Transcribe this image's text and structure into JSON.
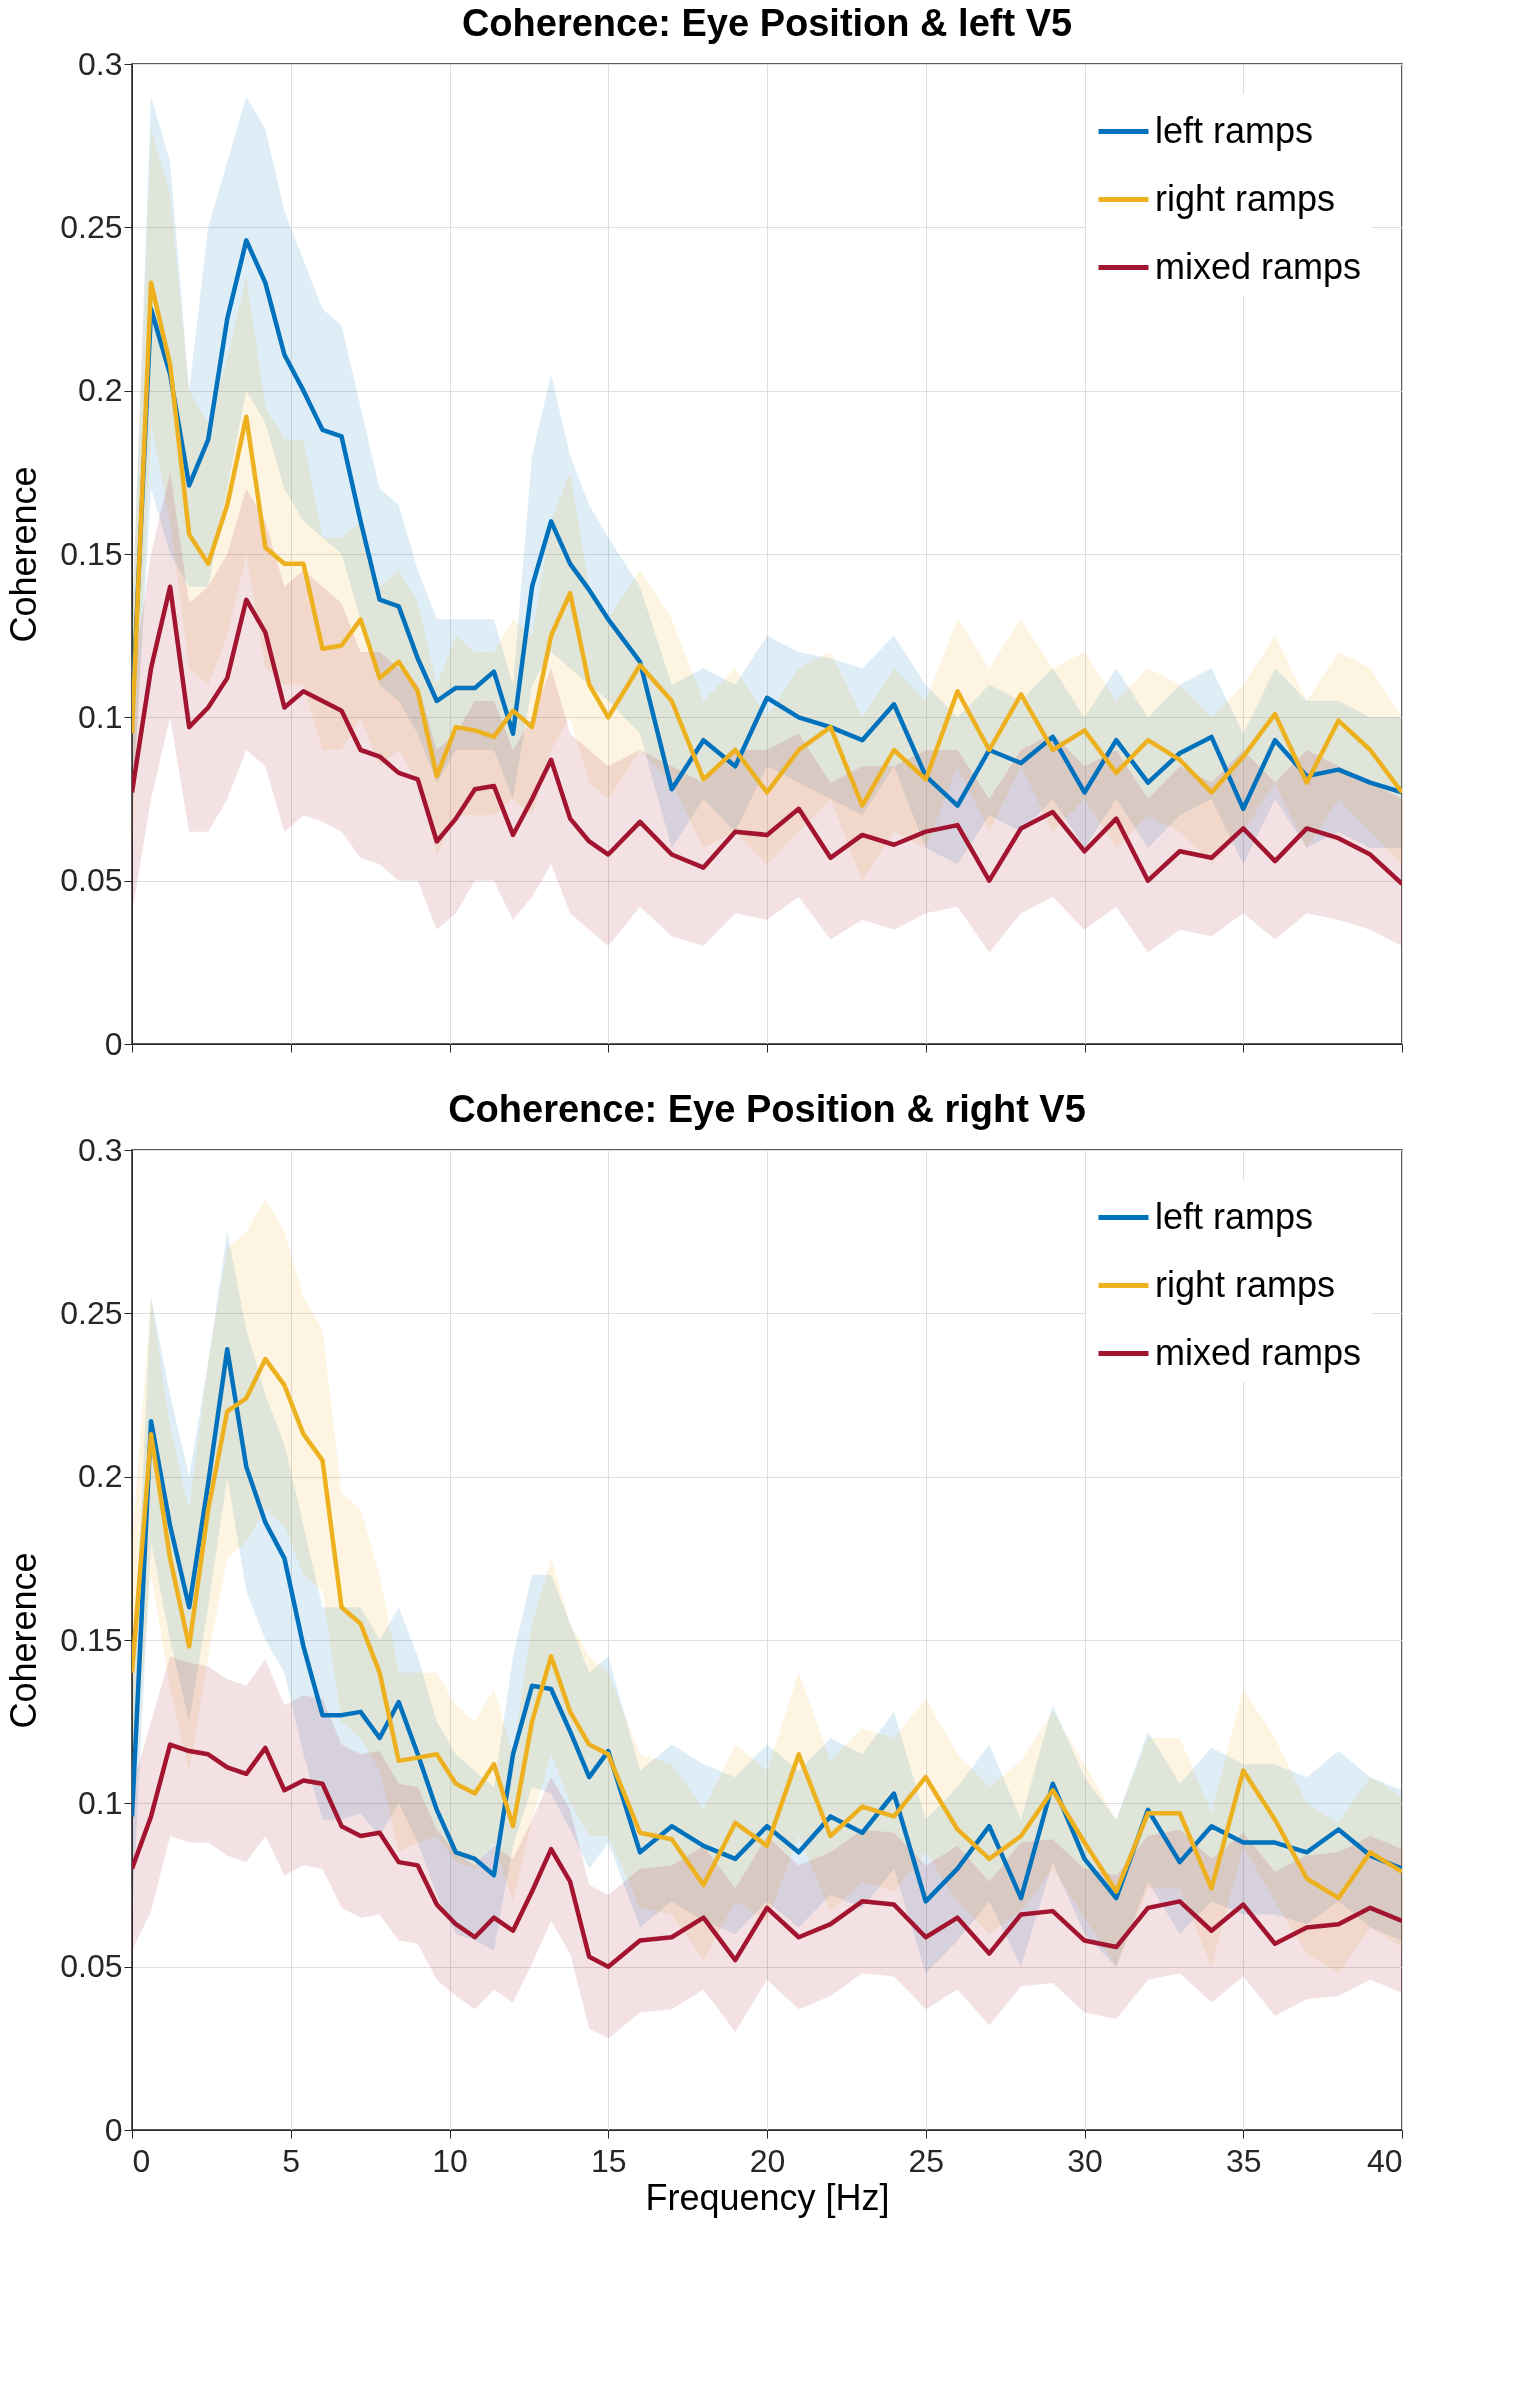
{
  "chart_data": [
    {
      "type": "line",
      "title": "Coherence: Eye Position & left V5",
      "ylabel": "Coherence",
      "xlim": [
        0,
        40
      ],
      "xticks": [
        0,
        5,
        10,
        15,
        20,
        25,
        30,
        35,
        40
      ],
      "ylim": [
        0,
        0.3
      ],
      "yticks": [
        0,
        0.05,
        0.1,
        0.15,
        0.2,
        0.25,
        0.3
      ],
      "grid": true,
      "legend": "top right",
      "tick_labels": "y",
      "x": [
        0,
        0.6,
        1.2,
        1.8,
        2.4,
        3.0,
        3.6,
        4.2,
        4.8,
        5.4,
        6.0,
        6.6,
        7.2,
        7.8,
        8.4,
        9.0,
        9.6,
        10.2,
        10.8,
        11.4,
        12.0,
        12.6,
        13.2,
        13.8,
        14.4,
        15,
        16,
        17,
        18,
        19,
        20,
        21,
        22,
        23,
        24,
        25,
        26,
        27,
        28,
        29,
        30,
        31,
        32,
        33,
        34,
        35,
        36,
        37,
        38,
        39,
        40
      ],
      "series": [
        {
          "name": "left ramps",
          "color": "#0072bd",
          "values": [
            0.1,
            0.225,
            0.205,
            0.171,
            0.185,
            0.222,
            0.246,
            0.233,
            0.211,
            0.2,
            0.188,
            0.186,
            0.16,
            0.136,
            0.134,
            0.118,
            0.105,
            0.109,
            0.109,
            0.114,
            0.095,
            0.14,
            0.16,
            0.147,
            0.139,
            0.13,
            0.117,
            0.078,
            0.093,
            0.085,
            0.106,
            0.1,
            0.097,
            0.093,
            0.104,
            0.082,
            0.073,
            0.09,
            0.086,
            0.094,
            0.077,
            0.093,
            0.08,
            0.089,
            0.094,
            0.072,
            0.093,
            0.082,
            0.084,
            0.08,
            0.077
          ],
          "upper": [
            0.13,
            0.29,
            0.27,
            0.2,
            0.25,
            0.27,
            0.29,
            0.28,
            0.255,
            0.24,
            0.225,
            0.22,
            0.195,
            0.17,
            0.165,
            0.145,
            0.13,
            0.13,
            0.13,
            0.13,
            0.11,
            0.18,
            0.205,
            0.18,
            0.165,
            0.155,
            0.14,
            0.11,
            0.115,
            0.11,
            0.125,
            0.12,
            0.118,
            0.115,
            0.125,
            0.11,
            0.1,
            0.11,
            0.105,
            0.115,
            0.1,
            0.115,
            0.1,
            0.11,
            0.115,
            0.095,
            0.115,
            0.105,
            0.105,
            0.1,
            0.1
          ],
          "lower": [
            0.07,
            0.17,
            0.15,
            0.14,
            0.14,
            0.17,
            0.2,
            0.19,
            0.17,
            0.16,
            0.155,
            0.15,
            0.13,
            0.11,
            0.105,
            0.095,
            0.08,
            0.09,
            0.09,
            0.09,
            0.075,
            0.11,
            0.12,
            0.115,
            0.11,
            0.105,
            0.095,
            0.06,
            0.075,
            0.065,
            0.085,
            0.08,
            0.075,
            0.07,
            0.085,
            0.06,
            0.055,
            0.07,
            0.065,
            0.075,
            0.06,
            0.075,
            0.06,
            0.07,
            0.075,
            0.055,
            0.075,
            0.06,
            0.065,
            0.06,
            0.06
          ]
        },
        {
          "name": "right ramps",
          "color": "#edb120",
          "values": [
            0.095,
            0.233,
            0.208,
            0.156,
            0.147,
            0.165,
            0.192,
            0.152,
            0.147,
            0.147,
            0.121,
            0.122,
            0.13,
            0.112,
            0.117,
            0.108,
            0.082,
            0.097,
            0.096,
            0.094,
            0.102,
            0.097,
            0.125,
            0.138,
            0.11,
            0.1,
            0.116,
            0.105,
            0.081,
            0.09,
            0.077,
            0.09,
            0.097,
            0.073,
            0.09,
            0.081,
            0.108,
            0.09,
            0.107,
            0.09,
            0.096,
            0.083,
            0.093,
            0.087,
            0.077,
            0.088,
            0.101,
            0.08,
            0.099,
            0.09,
            0.077
          ],
          "upper": [
            0.13,
            0.28,
            0.26,
            0.2,
            0.19,
            0.21,
            0.235,
            0.195,
            0.185,
            0.185,
            0.155,
            0.155,
            0.16,
            0.14,
            0.145,
            0.135,
            0.11,
            0.125,
            0.12,
            0.12,
            0.13,
            0.125,
            0.16,
            0.175,
            0.14,
            0.13,
            0.145,
            0.13,
            0.105,
            0.115,
            0.1,
            0.115,
            0.12,
            0.1,
            0.115,
            0.105,
            0.13,
            0.115,
            0.13,
            0.115,
            0.12,
            0.105,
            0.115,
            0.11,
            0.1,
            0.11,
            0.125,
            0.105,
            0.12,
            0.115,
            0.1
          ],
          "lower": [
            0.06,
            0.19,
            0.16,
            0.115,
            0.11,
            0.125,
            0.15,
            0.115,
            0.11,
            0.11,
            0.09,
            0.09,
            0.1,
            0.085,
            0.09,
            0.08,
            0.058,
            0.07,
            0.07,
            0.07,
            0.075,
            0.07,
            0.09,
            0.1,
            0.08,
            0.075,
            0.09,
            0.08,
            0.06,
            0.065,
            0.055,
            0.065,
            0.075,
            0.05,
            0.065,
            0.06,
            0.085,
            0.065,
            0.085,
            0.065,
            0.075,
            0.06,
            0.07,
            0.065,
            0.055,
            0.065,
            0.08,
            0.06,
            0.075,
            0.065,
            0.055
          ]
        },
        {
          "name": "mixed ramps",
          "color": "#a2142f",
          "values": [
            0.077,
            0.115,
            0.14,
            0.097,
            0.103,
            0.112,
            0.136,
            0.126,
            0.103,
            0.108,
            0.105,
            0.102,
            0.09,
            0.088,
            0.083,
            0.081,
            0.062,
            0.069,
            0.078,
            0.079,
            0.064,
            0.075,
            0.087,
            0.069,
            0.062,
            0.058,
            0.068,
            0.058,
            0.054,
            0.065,
            0.064,
            0.072,
            0.057,
            0.064,
            0.061,
            0.065,
            0.067,
            0.05,
            0.066,
            0.071,
            0.059,
            0.069,
            0.05,
            0.059,
            0.057,
            0.066,
            0.056,
            0.066,
            0.063,
            0.058,
            0.049
          ],
          "upper": [
            0.11,
            0.15,
            0.175,
            0.135,
            0.14,
            0.15,
            0.17,
            0.16,
            0.14,
            0.145,
            0.14,
            0.135,
            0.12,
            0.12,
            0.115,
            0.11,
            0.09,
            0.095,
            0.105,
            0.105,
            0.09,
            0.1,
            0.115,
            0.095,
            0.09,
            0.085,
            0.09,
            0.085,
            0.08,
            0.09,
            0.09,
            0.095,
            0.08,
            0.085,
            0.085,
            0.09,
            0.09,
            0.075,
            0.09,
            0.095,
            0.085,
            0.09,
            0.075,
            0.085,
            0.08,
            0.09,
            0.08,
            0.09,
            0.085,
            0.08,
            0.075
          ],
          "lower": [
            0.04,
            0.075,
            0.1,
            0.065,
            0.065,
            0.075,
            0.09,
            0.085,
            0.065,
            0.07,
            0.068,
            0.065,
            0.057,
            0.055,
            0.05,
            0.05,
            0.035,
            0.04,
            0.05,
            0.05,
            0.038,
            0.045,
            0.055,
            0.04,
            0.035,
            0.03,
            0.042,
            0.033,
            0.03,
            0.04,
            0.038,
            0.045,
            0.032,
            0.038,
            0.035,
            0.04,
            0.042,
            0.028,
            0.04,
            0.045,
            0.035,
            0.042,
            0.028,
            0.035,
            0.033,
            0.04,
            0.032,
            0.04,
            0.038,
            0.035,
            0.03
          ]
        }
      ]
    },
    {
      "type": "line",
      "title": "Coherence: Eye Position & right V5",
      "xlabel": "Frequency [Hz]",
      "ylabel": "Coherence",
      "xlim": [
        0,
        40
      ],
      "xticks": [
        0,
        5,
        10,
        15,
        20,
        25,
        30,
        35,
        40
      ],
      "ylim": [
        0,
        0.3
      ],
      "yticks": [
        0,
        0.05,
        0.1,
        0.15,
        0.2,
        0.25,
        0.3
      ],
      "grid": true,
      "legend": "top right",
      "x": [
        0,
        0.6,
        1.2,
        1.8,
        2.4,
        3.0,
        3.6,
        4.2,
        4.8,
        5.4,
        6.0,
        6.6,
        7.2,
        7.8,
        8.4,
        9.0,
        9.6,
        10.2,
        10.8,
        11.4,
        12.0,
        12.6,
        13.2,
        13.8,
        14.4,
        15,
        16,
        17,
        18,
        19,
        20,
        21,
        22,
        23,
        24,
        25,
        26,
        27,
        28,
        29,
        30,
        31,
        32,
        33,
        34,
        35,
        36,
        37,
        38,
        39,
        40
      ],
      "series": [
        {
          "name": "left ramps",
          "color": "#0072bd",
          "values": [
            0.096,
            0.217,
            0.185,
            0.16,
            0.198,
            0.239,
            0.203,
            0.186,
            0.175,
            0.148,
            0.127,
            0.127,
            0.128,
            0.12,
            0.131,
            0.115,
            0.098,
            0.085,
            0.083,
            0.078,
            0.115,
            0.136,
            0.135,
            0.122,
            0.108,
            0.116,
            0.085,
            0.093,
            0.087,
            0.083,
            0.093,
            0.085,
            0.096,
            0.091,
            0.103,
            0.07,
            0.08,
            0.093,
            0.071,
            0.106,
            0.083,
            0.071,
            0.098,
            0.082,
            0.093,
            0.088,
            0.088,
            0.085,
            0.092,
            0.084,
            0.08
          ],
          "upper": [
            0.13,
            0.255,
            0.225,
            0.2,
            0.235,
            0.275,
            0.245,
            0.225,
            0.21,
            0.185,
            0.16,
            0.16,
            0.16,
            0.15,
            0.16,
            0.145,
            0.125,
            0.115,
            0.11,
            0.105,
            0.145,
            0.17,
            0.17,
            0.155,
            0.14,
            0.145,
            0.11,
            0.118,
            0.112,
            0.108,
            0.118,
            0.11,
            0.12,
            0.115,
            0.128,
            0.095,
            0.105,
            0.118,
            0.095,
            0.13,
            0.108,
            0.095,
            0.122,
            0.106,
            0.117,
            0.112,
            0.112,
            0.108,
            0.116,
            0.108,
            0.104
          ],
          "lower": [
            0.065,
            0.18,
            0.15,
            0.125,
            0.16,
            0.2,
            0.165,
            0.15,
            0.14,
            0.115,
            0.095,
            0.095,
            0.097,
            0.09,
            0.1,
            0.088,
            0.072,
            0.06,
            0.058,
            0.055,
            0.087,
            0.105,
            0.103,
            0.092,
            0.08,
            0.088,
            0.062,
            0.07,
            0.064,
            0.06,
            0.07,
            0.062,
            0.072,
            0.068,
            0.08,
            0.048,
            0.058,
            0.07,
            0.05,
            0.082,
            0.06,
            0.05,
            0.076,
            0.06,
            0.07,
            0.066,
            0.066,
            0.063,
            0.07,
            0.062,
            0.058
          ]
        },
        {
          "name": "right ramps",
          "color": "#edb120",
          "values": [
            0.14,
            0.213,
            0.175,
            0.148,
            0.19,
            0.22,
            0.224,
            0.236,
            0.228,
            0.213,
            0.205,
            0.16,
            0.155,
            0.14,
            0.113,
            0.114,
            0.115,
            0.106,
            0.103,
            0.112,
            0.093,
            0.125,
            0.145,
            0.128,
            0.118,
            0.115,
            0.091,
            0.089,
            0.075,
            0.094,
            0.087,
            0.115,
            0.09,
            0.099,
            0.096,
            0.108,
            0.092,
            0.083,
            0.09,
            0.104,
            0.088,
            0.073,
            0.097,
            0.097,
            0.074,
            0.11,
            0.095,
            0.077,
            0.071,
            0.085,
            0.079
          ],
          "upper": [
            0.18,
            0.255,
            0.215,
            0.19,
            0.235,
            0.27,
            0.275,
            0.285,
            0.275,
            0.255,
            0.245,
            0.195,
            0.19,
            0.17,
            0.14,
            0.14,
            0.14,
            0.13,
            0.125,
            0.135,
            0.115,
            0.155,
            0.175,
            0.155,
            0.145,
            0.14,
            0.115,
            0.112,
            0.098,
            0.118,
            0.11,
            0.14,
            0.113,
            0.123,
            0.12,
            0.132,
            0.115,
            0.105,
            0.113,
            0.128,
            0.112,
            0.095,
            0.12,
            0.12,
            0.097,
            0.135,
            0.12,
            0.1,
            0.094,
            0.108,
            0.102
          ],
          "lower": [
            0.1,
            0.17,
            0.135,
            0.11,
            0.145,
            0.175,
            0.18,
            0.19,
            0.185,
            0.17,
            0.165,
            0.125,
            0.12,
            0.11,
            0.085,
            0.088,
            0.09,
            0.082,
            0.08,
            0.088,
            0.07,
            0.095,
            0.115,
            0.1,
            0.09,
            0.09,
            0.068,
            0.066,
            0.052,
            0.07,
            0.064,
            0.09,
            0.067,
            0.076,
            0.073,
            0.085,
            0.07,
            0.06,
            0.067,
            0.08,
            0.065,
            0.05,
            0.074,
            0.074,
            0.05,
            0.087,
            0.07,
            0.054,
            0.048,
            0.062,
            0.056
          ]
        },
        {
          "name": "mixed ramps",
          "color": "#a2142f",
          "values": [
            0.08,
            0.096,
            0.118,
            0.116,
            0.115,
            0.111,
            0.109,
            0.117,
            0.104,
            0.107,
            0.106,
            0.093,
            0.09,
            0.091,
            0.082,
            0.081,
            0.069,
            0.063,
            0.059,
            0.065,
            0.061,
            0.073,
            0.086,
            0.076,
            0.053,
            0.05,
            0.058,
            0.059,
            0.065,
            0.052,
            0.068,
            0.059,
            0.063,
            0.07,
            0.069,
            0.059,
            0.065,
            0.054,
            0.066,
            0.067,
            0.058,
            0.056,
            0.068,
            0.07,
            0.061,
            0.069,
            0.057,
            0.062,
            0.063,
            0.068,
            0.064
          ],
          "upper": [
            0.105,
            0.125,
            0.145,
            0.143,
            0.142,
            0.138,
            0.136,
            0.144,
            0.13,
            0.133,
            0.132,
            0.118,
            0.115,
            0.116,
            0.106,
            0.105,
            0.092,
            0.085,
            0.081,
            0.087,
            0.083,
            0.095,
            0.108,
            0.098,
            0.075,
            0.072,
            0.08,
            0.081,
            0.087,
            0.074,
            0.09,
            0.081,
            0.085,
            0.092,
            0.091,
            0.081,
            0.087,
            0.076,
            0.088,
            0.089,
            0.08,
            0.078,
            0.09,
            0.092,
            0.083,
            0.091,
            0.079,
            0.084,
            0.085,
            0.09,
            0.086
          ],
          "lower": [
            0.055,
            0.067,
            0.09,
            0.088,
            0.088,
            0.084,
            0.082,
            0.09,
            0.078,
            0.081,
            0.08,
            0.068,
            0.065,
            0.066,
            0.058,
            0.057,
            0.046,
            0.041,
            0.037,
            0.043,
            0.039,
            0.051,
            0.064,
            0.054,
            0.031,
            0.028,
            0.036,
            0.037,
            0.043,
            0.03,
            0.046,
            0.037,
            0.041,
            0.048,
            0.047,
            0.037,
            0.043,
            0.032,
            0.044,
            0.045,
            0.036,
            0.034,
            0.046,
            0.048,
            0.039,
            0.047,
            0.035,
            0.04,
            0.041,
            0.046,
            0.042
          ]
        }
      ]
    }
  ]
}
